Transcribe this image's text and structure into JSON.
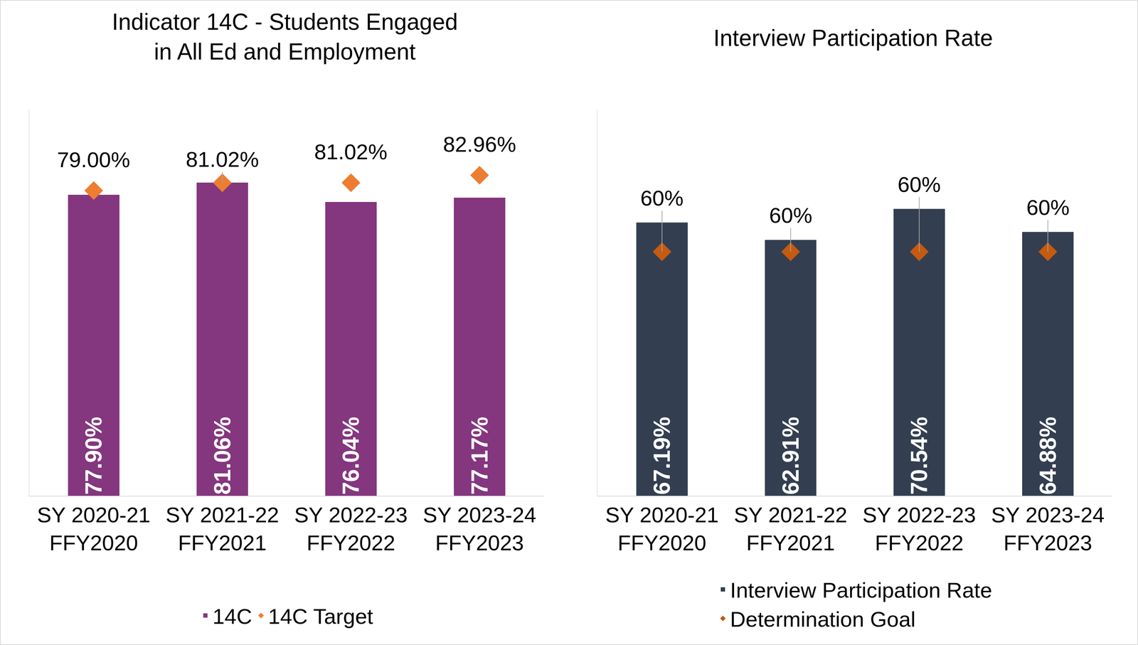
{
  "chart_data": [
    {
      "type": "bar",
      "title": "Indicator 14C - Students Engaged in All Ed and Employment",
      "categories": [
        "SY 2020-21 FFY2020",
        "SY 2021-22 FFY2021",
        "SY 2022-23 FFY2022",
        "SY 2023-24 FFY2023"
      ],
      "series": [
        {
          "name": "14C",
          "type": "bar",
          "color": "#84367F",
          "values": [
            77.9,
            81.06,
            76.04,
            77.17
          ],
          "value_labels": [
            "77.90%",
            "81.06%",
            "76.04%",
            "77.17%"
          ]
        },
        {
          "name": "14C Target",
          "type": "scatter",
          "marker": "diamond",
          "color": "#ED7D31",
          "values": [
            79.0,
            81.02,
            81.02,
            82.96
          ],
          "value_labels": [
            "79.00%",
            "81.02%",
            "81.02%",
            "82.96%"
          ]
        }
      ],
      "ylim": [
        0,
        100
      ],
      "grid": false,
      "legend": "bottom",
      "data_labels": true,
      "tick_labels": "x"
    },
    {
      "type": "bar",
      "title": "Interview Participation Rate",
      "categories": [
        "SY 2020-21 FFY2020",
        "SY 2021-22 FFY2021",
        "SY 2022-23 FFY2022",
        "SY 2023-24 FFY2023"
      ],
      "series": [
        {
          "name": "Interview Participation Rate",
          "type": "bar",
          "color": "#333F50",
          "values": [
            67.19,
            62.91,
            70.54,
            64.88
          ],
          "value_labels": [
            "67.19%",
            "62.91%",
            "70.54%",
            "64.88%"
          ]
        },
        {
          "name": "Determination Goal",
          "type": "scatter",
          "marker": "diamond",
          "color": "#C55A11",
          "values": [
            60,
            60,
            60,
            60
          ],
          "value_labels": [
            "60%",
            "60%",
            "60%",
            "60%"
          ]
        }
      ],
      "ylim": [
        0,
        95
      ],
      "grid": false,
      "legend": "bottom",
      "data_labels": true,
      "tick_labels": "x"
    }
  ]
}
